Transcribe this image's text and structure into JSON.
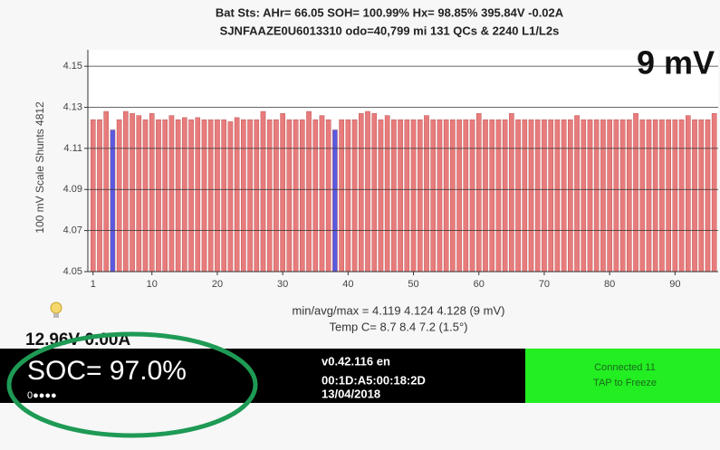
{
  "header": {
    "line1": "Bat Sts:  AHr= 66.05  SOH= 100.99%  Hx= 98.85%  395.84V -0.02A",
    "line2": "SJNFAAZE0U6013310 odo=40,799 mi  131 QCs & 2240 L1/L2s"
  },
  "chart_data": {
    "type": "bar",
    "title": "9 mV",
    "y_label": "100 mV Scale   Shunts 4812",
    "x_caption": "min/avg/max = 4.119 4.124 4.128  (9 mV)",
    "temp_caption": "Temp C= 8.7  8.4  7.2  (1.5°)",
    "color": "#e87c7c",
    "min_color": "#5a5ae0",
    "x": [
      1,
      2,
      3,
      4,
      5,
      6,
      7,
      8,
      9,
      10,
      11,
      12,
      13,
      14,
      15,
      16,
      17,
      18,
      19,
      20,
      21,
      22,
      23,
      24,
      25,
      26,
      27,
      28,
      29,
      30,
      31,
      32,
      33,
      34,
      35,
      36,
      37,
      38,
      39,
      40,
      41,
      42,
      43,
      44,
      45,
      46,
      47,
      48,
      49,
      50,
      51,
      52,
      53,
      54,
      55,
      56,
      57,
      58,
      59,
      60,
      61,
      62,
      63,
      64,
      65,
      66,
      67,
      68,
      69,
      70,
      71,
      72,
      73,
      74,
      75,
      76,
      77,
      78,
      79,
      80,
      81,
      82,
      83,
      84,
      85,
      86,
      87,
      88,
      89,
      90,
      91,
      92,
      93,
      94,
      95,
      96
    ],
    "values": [
      4.124,
      4.124,
      4.128,
      4.119,
      4.124,
      4.128,
      4.127,
      4.126,
      4.124,
      4.127,
      4.124,
      4.124,
      4.126,
      4.124,
      4.125,
      4.124,
      4.125,
      4.124,
      4.124,
      4.124,
      4.124,
      4.123,
      4.125,
      4.124,
      4.124,
      4.124,
      4.128,
      4.124,
      4.124,
      4.127,
      4.124,
      4.124,
      4.124,
      4.128,
      4.124,
      4.126,
      4.124,
      4.119,
      4.124,
      4.124,
      4.124,
      4.127,
      4.128,
      4.127,
      4.124,
      4.126,
      4.124,
      4.124,
      4.124,
      4.124,
      4.124,
      4.126,
      4.124,
      4.124,
      4.124,
      4.124,
      4.124,
      4.124,
      4.124,
      4.127,
      4.124,
      4.124,
      4.124,
      4.124,
      4.127,
      4.124,
      4.124,
      4.124,
      4.124,
      4.124,
      4.124,
      4.124,
      4.124,
      4.124,
      4.126,
      4.124,
      4.124,
      4.124,
      4.124,
      4.124,
      4.124,
      4.124,
      4.124,
      4.127,
      4.124,
      4.124,
      4.124,
      4.124,
      4.124,
      4.124,
      4.124,
      4.126,
      4.124,
      4.124,
      4.124,
      4.127
    ],
    "xlim": [
      0.2,
      96.6
    ],
    "xticks": [
      1,
      10,
      20,
      30,
      40,
      50,
      60,
      70,
      80,
      90
    ],
    "ylim": [
      4.05,
      4.158
    ],
    "yticks": [
      4.05,
      4.07,
      4.09,
      4.11,
      4.13,
      4.15
    ],
    "grid": true
  },
  "status": {
    "voltage": "12.96V 0.00A",
    "soc": "SOC= 97.0%",
    "dots": "0●●●●",
    "version": "v0.42.116 en",
    "mac": "00:1D:A5:00:18:2D",
    "date": "13/04/2018",
    "connection": "Connected 11",
    "action": "TAP to Freeze"
  }
}
